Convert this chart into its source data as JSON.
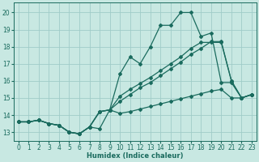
{
  "xlabel": "Humidex (Indice chaleur)",
  "bg_color": "#c8e8e2",
  "grid_color": "#a0ccc8",
  "line_color": "#1a6b5e",
  "xlim": [
    -0.5,
    23.5
  ],
  "ylim": [
    12.5,
    20.6
  ],
  "xticks": [
    0,
    1,
    2,
    3,
    4,
    5,
    6,
    7,
    8,
    9,
    10,
    11,
    12,
    13,
    14,
    15,
    16,
    17,
    18,
    19,
    20,
    21,
    22,
    23
  ],
  "yticks": [
    13,
    14,
    15,
    16,
    17,
    18,
    19,
    20
  ],
  "curve_x": [
    0,
    1,
    2,
    3,
    4,
    5,
    6,
    7,
    8,
    9,
    10,
    11,
    12,
    13,
    14,
    15,
    16,
    17,
    18,
    19,
    20,
    21,
    22,
    23
  ],
  "line_bottom_y": [
    13.6,
    13.6,
    13.7,
    13.5,
    13.4,
    13.0,
    12.9,
    13.3,
    13.2,
    14.3,
    14.1,
    14.2,
    14.35,
    14.5,
    14.65,
    14.8,
    14.95,
    15.1,
    15.25,
    15.4,
    15.5,
    15.0,
    15.0,
    15.2
  ],
  "line_top_y": [
    13.6,
    13.6,
    13.7,
    13.5,
    13.4,
    13.0,
    12.9,
    13.3,
    14.2,
    14.3,
    16.4,
    17.4,
    17.0,
    18.0,
    19.25,
    19.25,
    20.0,
    20.0,
    18.6,
    18.8,
    15.9,
    15.9,
    15.0,
    15.2
  ],
  "line_mid1_y": [
    13.6,
    13.6,
    13.7,
    13.5,
    13.4,
    13.0,
    12.9,
    13.3,
    14.2,
    14.3,
    14.8,
    15.2,
    15.6,
    15.9,
    16.3,
    16.7,
    17.1,
    17.55,
    17.9,
    18.3,
    18.3,
    16.0,
    15.0,
    15.2
  ],
  "line_mid2_y": [
    13.6,
    13.6,
    13.7,
    13.5,
    13.4,
    13.0,
    12.9,
    13.3,
    14.2,
    14.3,
    15.1,
    15.5,
    15.85,
    16.2,
    16.6,
    17.0,
    17.4,
    17.9,
    18.25,
    18.25,
    18.25,
    16.0,
    15.0,
    15.2
  ]
}
